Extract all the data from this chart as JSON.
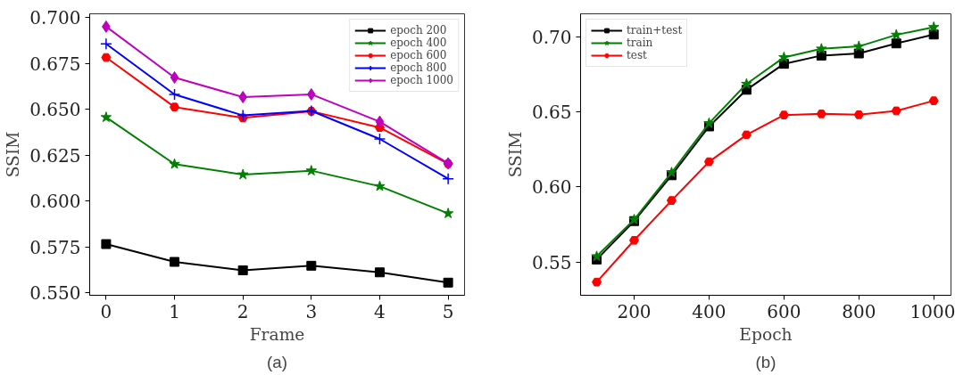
{
  "chart_data": [
    {
      "type": "line",
      "xlabel": "Frame",
      "ylabel": "SSIM",
      "annotations": [
        "(a)"
      ],
      "x": [
        0,
        1,
        2,
        3,
        4,
        5
      ],
      "xlim": [
        -0.24,
        5.24
      ],
      "xticks": [
        0,
        1,
        2,
        3,
        4,
        5
      ],
      "ylim": [
        0.5487,
        0.7021
      ],
      "yticks": [
        {
          "value": 0.55,
          "label": "0.550"
        },
        {
          "value": 0.575,
          "label": "0.575"
        },
        {
          "value": 0.6,
          "label": "0.600"
        },
        {
          "value": 0.625,
          "label": "0.625"
        },
        {
          "value": 0.65,
          "label": "0.650"
        },
        {
          "value": 0.675,
          "label": "0.675"
        },
        {
          "value": 0.7,
          "label": "0.700"
        }
      ],
      "grid": false,
      "legend": "top right",
      "line_style": "solid",
      "series": [
        {
          "name": "epoch 200",
          "color": "#000000",
          "marker": "square",
          "values": [
            0.5766,
            0.5669,
            0.5623,
            0.5648,
            0.5612,
            0.5556
          ]
        },
        {
          "name": "epoch 400",
          "color": "#008000",
          "marker": "star",
          "values": [
            0.6457,
            0.6202,
            0.6145,
            0.6166,
            0.6081,
            0.5933
          ]
        },
        {
          "name": "epoch 600",
          "color": "#ff0000",
          "marker": "circle",
          "values": [
            0.6783,
            0.6513,
            0.6454,
            0.649,
            0.6401,
            0.6204
          ]
        },
        {
          "name": "epoch 800",
          "color": "#0000ff",
          "marker": "cross",
          "values": [
            0.6857,
            0.6582,
            0.6467,
            0.6492,
            0.6339,
            0.6122
          ]
        },
        {
          "name": "epoch 1000",
          "color": "#bf00bf",
          "marker": "diamond",
          "values": [
            0.6951,
            0.6674,
            0.6567,
            0.6582,
            0.6433,
            0.6206
          ]
        }
      ]
    },
    {
      "type": "line",
      "xlabel": "Epoch",
      "ylabel": "SSIM",
      "annotations": [
        "(b)"
      ],
      "x": [
        100,
        200,
        300,
        400,
        500,
        600,
        700,
        800,
        900,
        1000
      ],
      "xlim": [
        57,
        1046
      ],
      "xticks": [
        200,
        400,
        600,
        800,
        1000
      ],
      "ylim": [
        0.5278,
        0.7152
      ],
      "yticks": [
        {
          "value": 0.55,
          "label": "0.55"
        },
        {
          "value": 0.6,
          "label": "0.60"
        },
        {
          "value": 0.65,
          "label": "0.65"
        },
        {
          "value": 0.7,
          "label": "0.70"
        }
      ],
      "grid": false,
      "legend": "top left",
      "line_style": "solid",
      "series": [
        {
          "name": "train+test",
          "color": "#000000",
          "marker": "square",
          "values": [
            0.5516,
            0.5772,
            0.6077,
            0.6402,
            0.6646,
            0.6819,
            0.6874,
            0.6888,
            0.6955,
            0.7014
          ]
        },
        {
          "name": "train",
          "color": "#008000",
          "marker": "star",
          "values": [
            0.5537,
            0.5782,
            0.6095,
            0.6423,
            0.6685,
            0.6862,
            0.6919,
            0.6935,
            0.7012,
            0.7063
          ]
        },
        {
          "name": "test",
          "color": "#ff0000",
          "marker": "circle",
          "values": [
            0.5366,
            0.5644,
            0.5909,
            0.6167,
            0.6346,
            0.6478,
            0.6486,
            0.648,
            0.6506,
            0.6573
          ]
        }
      ]
    }
  ]
}
